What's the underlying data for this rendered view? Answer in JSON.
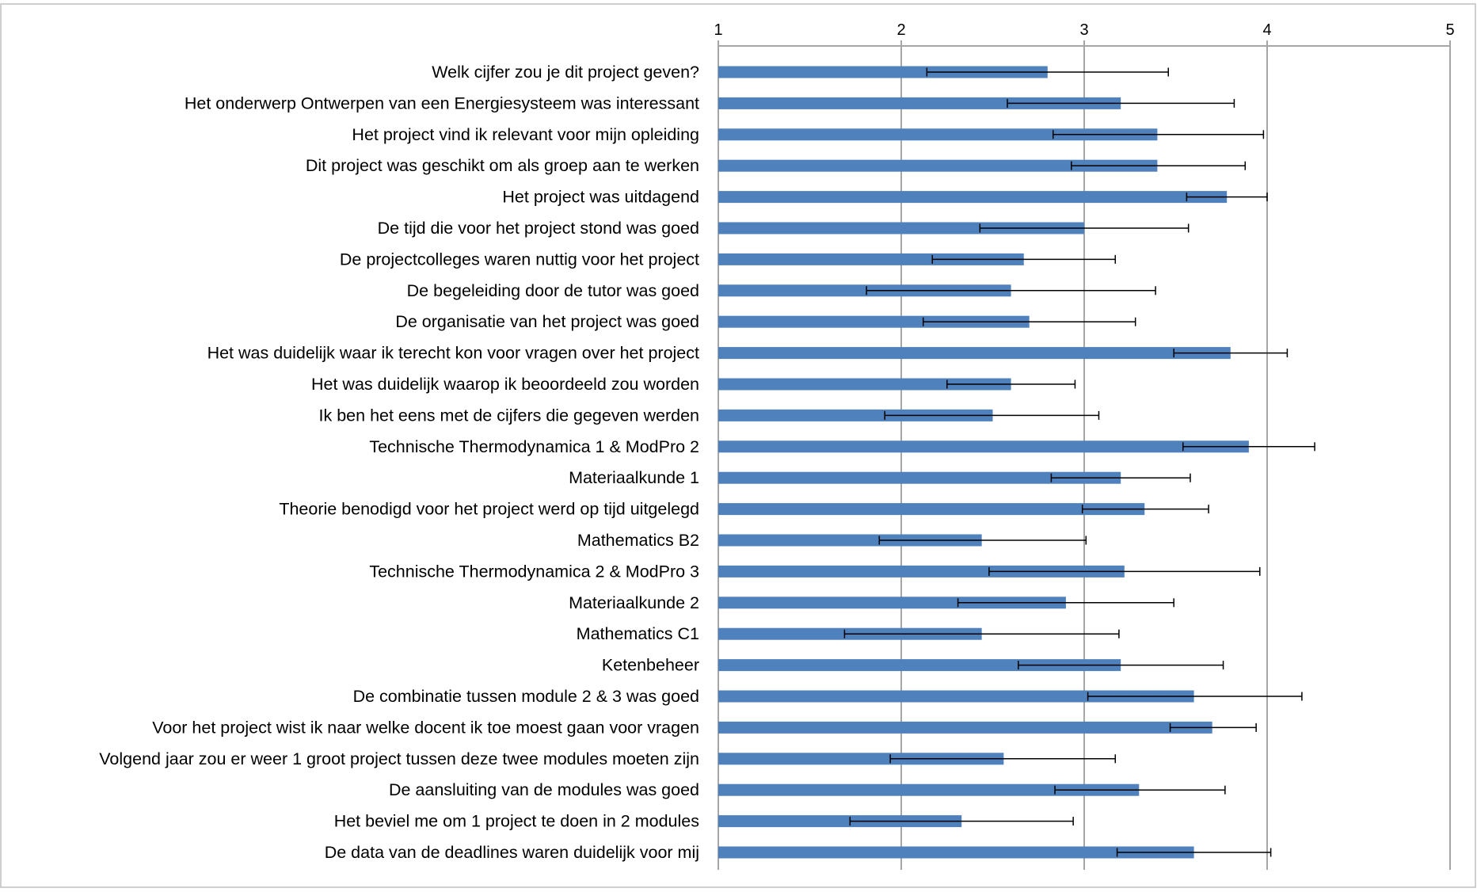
{
  "chart_data": {
    "type": "bar",
    "orientation": "horizontal",
    "title": "",
    "xlabel": "",
    "ylabel": "",
    "xlim": [
      1,
      5
    ],
    "x_ticks": [
      "1",
      "2",
      "3",
      "4",
      "5"
    ],
    "axis_position": "top",
    "grid": true,
    "legend": "none",
    "colors": {
      "bar": "#4f81bd",
      "grid": "#a6a6a6",
      "error_bar": "#000000",
      "frame": "#bfbfbf"
    },
    "categories": [
      "Welk cijfer zou je dit project geven?",
      "Het onderwerp Ontwerpen van een Energiesysteem was interessant",
      "Het project vind ik relevant voor mijn opleiding",
      "Dit project was geschikt om als groep aan te werken",
      "Het project was uitdagend",
      "De tijd die voor het project stond was goed",
      "De projectcolleges waren nuttig voor het project",
      "De begeleiding door de tutor was goed",
      "De organisatie van het project was goed",
      "Het was duidelijk waar ik terecht kon voor vragen over het project",
      "Het was duidelijk waarop ik beoordeeld zou worden",
      "Ik ben het eens met de cijfers die gegeven werden",
      "Technische Thermodynamica 1 & ModPro 2",
      "Materiaalkunde 1",
      "Theorie benodigd voor het project werd op tijd uitgelegd",
      "Mathematics B2",
      "Technische Thermodynamica 2 & ModPro 3",
      "Materiaalkunde 2",
      "Mathematics C1",
      "Ketenbeheer",
      "De combinatie tussen module 2 & 3 was goed",
      "Voor het project wist ik naar welke docent ik toe moest gaan voor vragen",
      "Volgend jaar zou er weer 1 groot project tussen deze twee modules moeten zijn",
      "De aansluiting van de modules was goed",
      "Het beviel me om 1 project te doen in 2 modules",
      "De data van de deadlines waren duidelijk voor mij"
    ],
    "values": [
      2.8,
      3.2,
      3.4,
      3.4,
      3.78,
      3.0,
      2.67,
      2.6,
      2.7,
      3.8,
      2.6,
      2.5,
      3.9,
      3.2,
      3.33,
      2.44,
      3.22,
      2.9,
      2.44,
      3.2,
      3.6,
      3.7,
      2.56,
      3.3,
      2.33,
      3.6
    ],
    "error_low": [
      2.14,
      2.58,
      2.83,
      2.93,
      3.56,
      2.43,
      2.17,
      1.81,
      2.12,
      3.49,
      2.25,
      1.91,
      3.54,
      2.82,
      2.99,
      1.88,
      2.48,
      2.31,
      1.69,
      2.64,
      3.02,
      3.47,
      1.94,
      2.84,
      1.72,
      3.18
    ],
    "error_high": [
      3.46,
      3.82,
      3.98,
      3.88,
      4.0,
      3.57,
      3.17,
      3.39,
      3.28,
      4.11,
      2.95,
      3.08,
      4.26,
      3.58,
      3.68,
      3.01,
      3.96,
      3.49,
      3.19,
      3.76,
      4.19,
      3.94,
      3.17,
      3.77,
      2.94,
      4.02
    ]
  }
}
